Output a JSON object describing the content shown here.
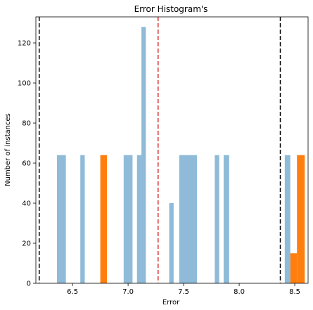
{
  "chart_data": {
    "type": "bar",
    "title": "Error Histogram's",
    "xlabel": "Error",
    "ylabel": "Number of instances",
    "xlim": [
      6.17,
      8.62
    ],
    "ylim": [
      0,
      133
    ],
    "xticks": [
      6.5,
      7.0,
      7.5,
      8.0,
      8.5
    ],
    "xtick_labels": [
      "6.5",
      "7.0",
      "7.5",
      "8.0",
      "8.5"
    ],
    "yticks": [
      0,
      20,
      40,
      60,
      80,
      100,
      120
    ],
    "ytick_labels": [
      "0",
      "20",
      "40",
      "60",
      "80",
      "100",
      "120"
    ],
    "grid": false,
    "series": [
      {
        "color": "#8fbbd9",
        "bins": [
          {
            "x0": 6.36,
            "x1": 6.44,
            "value": 64
          },
          {
            "x0": 6.57,
            "x1": 6.61,
            "value": 64
          },
          {
            "x0": 6.96,
            "x1": 7.04,
            "value": 64
          },
          {
            "x0": 7.08,
            "x1": 7.12,
            "value": 64
          },
          {
            "x0": 7.12,
            "x1": 7.16,
            "value": 128
          },
          {
            "x0": 7.37,
            "x1": 7.41,
            "value": 40
          },
          {
            "x0": 7.46,
            "x1": 7.62,
            "value": 64
          },
          {
            "x0": 7.78,
            "x1": 7.82,
            "value": 64
          },
          {
            "x0": 7.86,
            "x1": 7.91,
            "value": 64
          },
          {
            "x0": 8.41,
            "x1": 8.46,
            "value": 64
          }
        ]
      },
      {
        "color": "#ff7f0e",
        "bins": [
          {
            "x0": 6.75,
            "x1": 6.81,
            "value": 64
          },
          {
            "x0": 8.46,
            "x1": 8.52,
            "value": 15
          },
          {
            "x0": 8.52,
            "x1": 8.59,
            "value": 64
          }
        ]
      }
    ],
    "vlines": [
      {
        "x": 6.2,
        "color": "#000000",
        "style": "dashed"
      },
      {
        "x": 7.27,
        "color": "#d62728",
        "style": "dashed"
      },
      {
        "x": 8.37,
        "color": "#000000",
        "style": "dashed"
      }
    ]
  }
}
